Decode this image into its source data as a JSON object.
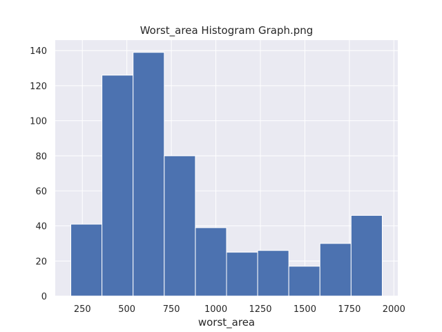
{
  "chart_data": {
    "type": "bar",
    "title": "Worst_area Histogram Graph.png",
    "xlabel": "worst_area",
    "ylabel": "",
    "bin_edges": [
      185.2,
      360.14,
      535.08,
      710.02,
      884.96,
      1059.9,
      1234.84,
      1409.78,
      1584.72,
      1759.66,
      1934.6
    ],
    "values": [
      41,
      126,
      139,
      80,
      39,
      25,
      26,
      17,
      30,
      46
    ],
    "xlim": [
      97.73,
      2022.07
    ],
    "ylim": [
      0,
      146
    ],
    "xticks": [
      250,
      500,
      750,
      1000,
      1250,
      1500,
      1750,
      2000
    ],
    "yticks": [
      0,
      20,
      40,
      60,
      80,
      100,
      120,
      140
    ],
    "grid": true,
    "bar_color": "#4c72b0",
    "background_color": "#eaeaf2",
    "grid_color": "#ffffff"
  }
}
